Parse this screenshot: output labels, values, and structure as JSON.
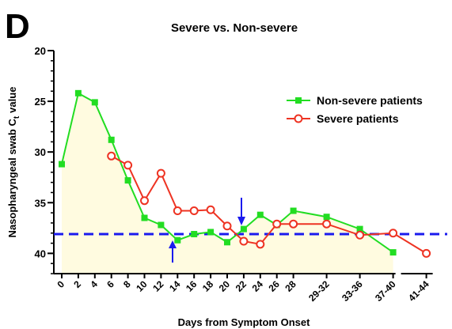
{
  "chart_data": {
    "type": "line",
    "panel_label": "D",
    "title": "Severe vs. Non-severe",
    "x_label": "Days from Symptom Onset",
    "y_label": {
      "main": "Nasopharyngeal swab C",
      "subscript": "t",
      "suffix": "value"
    },
    "categories": [
      "0",
      "2",
      "4",
      "6",
      "8",
      "10",
      "12",
      "14",
      "16",
      "18",
      "20",
      "22",
      "24",
      "26",
      "28",
      "29-32",
      "33-36",
      "37-40",
      "41-44"
    ],
    "series": [
      {
        "name": "Non-severe patients",
        "color": "#22dd22",
        "marker": "square",
        "fill": "#fffbe0",
        "values": [
          31.2,
          24.2,
          25.1,
          28.8,
          32.8,
          36.5,
          37.2,
          38.7,
          38.1,
          37.9,
          38.9,
          37.6,
          36.2,
          37.2,
          35.8,
          36.4,
          37.6,
          39.9,
          null
        ]
      },
      {
        "name": "Severe patients",
        "color": "#ee3322",
        "marker": "circle",
        "values": [
          null,
          null,
          null,
          30.4,
          31.3,
          34.8,
          32.1,
          35.8,
          35.8,
          35.7,
          37.3,
          38.8,
          39.1,
          37.1,
          37.1,
          37.1,
          38.2,
          38.0,
          40.0
        ]
      }
    ],
    "threshold": 38.1,
    "threshold_color": "#1a1aee",
    "ylim": [
      20,
      42
    ],
    "y_inverted": true,
    "yticks": [
      20,
      25,
      30,
      35,
      40
    ],
    "legend": "upper right"
  }
}
